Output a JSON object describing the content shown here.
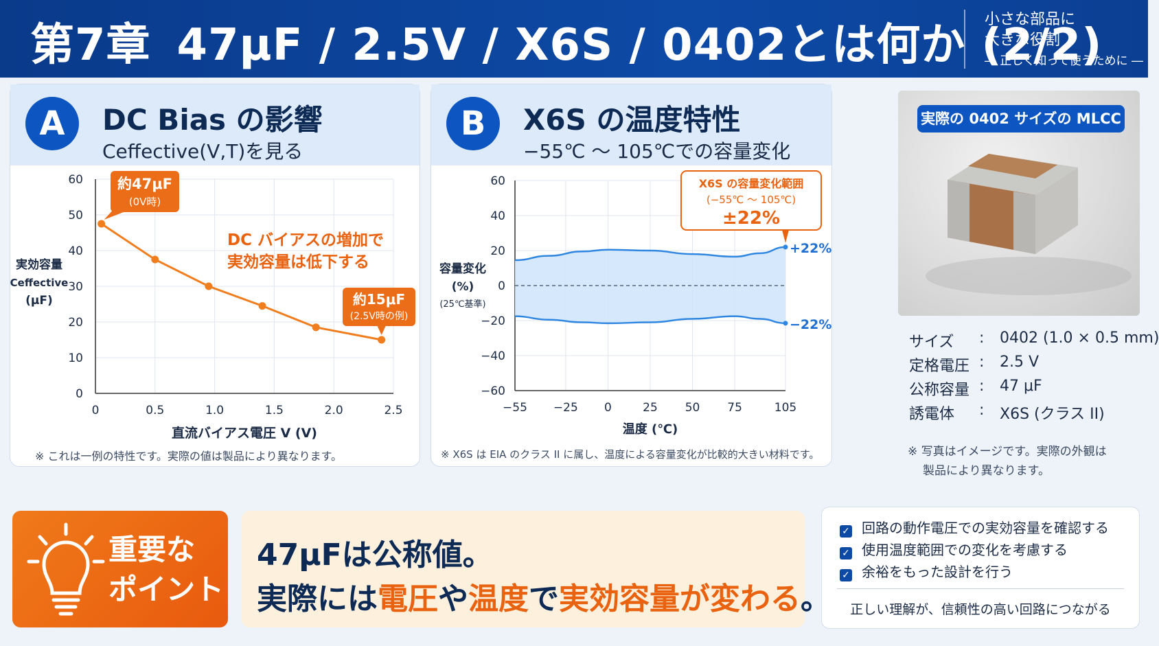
{
  "header": {
    "chapter": "第7章",
    "title": "47μF / 2.5V / X6S / 0402とは何か (2/2)",
    "tagline1": "小さな部品に",
    "tagline2": "大きな役割",
    "tagline3": "― 正しく知って使うために ―"
  },
  "panelA": {
    "badge": "A",
    "title": "DC Bias の影響",
    "subtitle": "Ceffective(V,T)を見る",
    "footnote": "※ これは一例の特性です。実際の値は製品により異なります。"
  },
  "panelB": {
    "badge": "B",
    "title": "X6S の温度特性",
    "subtitle": "−55℃ ～ 105℃での容量変化",
    "footnote": "※ X6S は EIA のクラス II に属し、温度による容量変化が比較的大きい材料です。"
  },
  "chart_data": [
    {
      "type": "line",
      "x": [
        0.05,
        0.5,
        0.95,
        1.4,
        1.85,
        2.4
      ],
      "values": [
        47.5,
        37.5,
        30,
        24.5,
        18.5,
        15
      ],
      "xlim": [
        0,
        2.5
      ],
      "ylim": [
        0,
        60
      ],
      "xticks": [
        "0",
        "0.5",
        "1.0",
        "1.5",
        "2.0",
        "2.5"
      ],
      "yticks": [
        "0",
        "10",
        "20",
        "30",
        "40",
        "50",
        "60"
      ],
      "xlabel": "直流バイアス電圧 V (V)",
      "ylabel": [
        "実効容量",
        "Ceffective",
        "(μF)"
      ],
      "grid": true,
      "color": "#f07d1e",
      "annotations": {
        "start_line1": "約47μF",
        "start_line2": "(0V時)",
        "end_line1": "約15μF",
        "end_line2": "(2.5V時の例)",
        "message_line1": "DC バイアスの増加で",
        "message_line2": "実効容量は低下する"
      }
    },
    {
      "type": "area",
      "x": [
        -55,
        -35,
        -15,
        0,
        25,
        50,
        75,
        90,
        105
      ],
      "upper": [
        14.5,
        17,
        19.5,
        20.5,
        20,
        18,
        16.5,
        18.5,
        22
      ],
      "lower": [
        -17.5,
        -19.5,
        -21,
        -21.5,
        -21,
        -19,
        -17.5,
        -19,
        -21.5
      ],
      "xlim": [
        -55,
        105
      ],
      "ylim": [
        -60,
        60
      ],
      "xticks": [
        "−55",
        "−25",
        "0",
        "25",
        "50",
        "75",
        "105"
      ],
      "yticks": [
        "60",
        "40",
        "20",
        "0",
        "−20",
        "−40",
        "−60"
      ],
      "xlabel": "温度 (℃)",
      "ylabel": [
        "容量変化",
        "(%)",
        "(25℃基準)"
      ],
      "grid": true,
      "color": "#2f86e0",
      "fill": "#cfe5fb",
      "annotations": {
        "upper_end": "+22%",
        "lower_end": "−22%",
        "range_line1": "X6S の容量変化範囲",
        "range_line2": "(−55℃ ～ 105℃)",
        "range_line3": "±22%"
      }
    }
  ],
  "photo": {
    "badge": "実際の 0402 サイズの MLCC",
    "specs": [
      {
        "k": "サイズ",
        "v": "0402 (1.0 × 0.5 mm)"
      },
      {
        "k": "定格電圧",
        "v": "2.5 V"
      },
      {
        "k": "公称容量",
        "v": "47 μF"
      },
      {
        "k": "誘電体",
        "v": "X6S (クラス II)"
      }
    ],
    "separator": ":",
    "note1": "※ 写真はイメージです。実際の外観は",
    "note2": "製品により異なります。"
  },
  "bottom": {
    "key_line1": "重要な",
    "key_line2": "ポイント",
    "msg1_a": "47μF",
    "msg1_b": "は公称値。",
    "msg2_a": "実際には",
    "msg2_b": "電圧",
    "msg2_c": "や",
    "msg2_d": "温度",
    "msg2_e": "で",
    "msg2_f": "実効容量が変わる",
    "msg2_g": "。",
    "checks": [
      "回路の動作電圧での実効容量を確認する",
      "使用温度範囲での変化を考慮する",
      "余裕をもった設計を行う"
    ],
    "check_foot": "正しい理解が、信頼性の高い回路につながる"
  },
  "colors": {
    "brand": "#0d4aa6",
    "accent": "#e8620f",
    "band": "#2f86e0"
  }
}
